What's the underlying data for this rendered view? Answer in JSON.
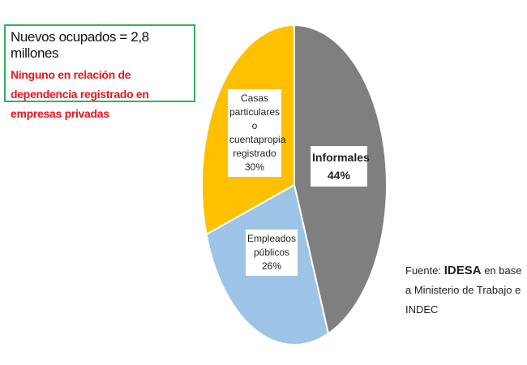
{
  "chart_data": {
    "type": "pie",
    "title": "Nuevos ocupados = 2,8 millones",
    "subtitle": "Ninguno en relación de dependencia registrado en empresas privadas",
    "categories": [
      "Informales",
      "Empleados públicos",
      "Casas particulares o cuentapropia registrado"
    ],
    "values": [
      44,
      26,
      30
    ],
    "value_labels": [
      "44%",
      "26%",
      "30%"
    ],
    "colors": [
      "#7f7f7f",
      "#9dc3e6",
      "#ffc000"
    ],
    "source": {
      "prefix": "Fuente:",
      "emphasis": "IDESA",
      "text": "en base a Ministerio de Trabajo e INDEC"
    }
  }
}
